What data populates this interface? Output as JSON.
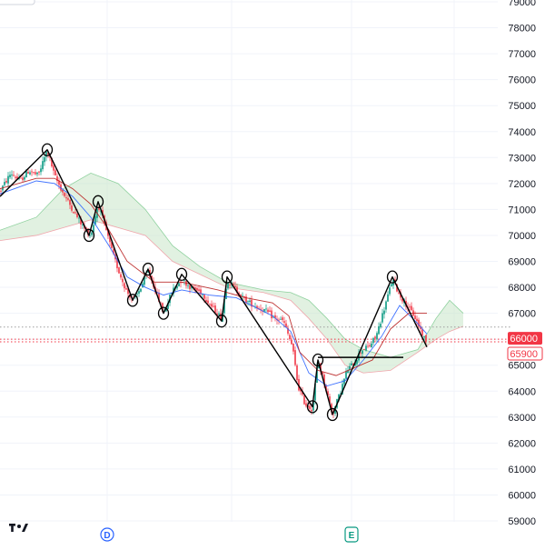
{
  "chart_data": {
    "type": "candlestick",
    "y_axis": {
      "position": "right",
      "range": [
        58700,
        79100
      ],
      "ticks": [
        59000,
        60000,
        61000,
        62000,
        63000,
        64000,
        65000,
        66000,
        67000,
        68000,
        69000,
        70000,
        71000,
        72000,
        73000,
        74000,
        75000,
        76000,
        77000,
        78000,
        79000
      ]
    },
    "x_axis": {
      "tick_labels": [],
      "event_markers": [
        {
          "label": "D",
          "x": 118,
          "color": "#2962ff"
        },
        {
          "label": "E",
          "x": 387,
          "color": "#089981"
        }
      ]
    },
    "x_range": [
      0,
      470
    ],
    "price_labels": [
      {
        "value": 66000,
        "text": "66000",
        "color": "#f23645",
        "style": "solid"
      },
      {
        "value": 65900,
        "text": "65900",
        "color": "#f23645",
        "style": "outline"
      }
    ],
    "horizontal_lines": [
      {
        "value": 66470,
        "color": "#9e9e9e",
        "style": "dotted"
      },
      {
        "value": 66000,
        "color": "#f23645",
        "style": "dotted"
      },
      {
        "value": 65900,
        "color": "#f23645",
        "style": "dotted"
      }
    ],
    "candle_colors": {
      "up": "#089981",
      "down": "#f23645"
    },
    "price_path": [
      [
        0,
        71700
      ],
      [
        12,
        72400
      ],
      [
        22,
        72100
      ],
      [
        32,
        72500
      ],
      [
        42,
        72300
      ],
      [
        52,
        73300
      ],
      [
        60,
        72300
      ],
      [
        70,
        71600
      ],
      [
        80,
        71000
      ],
      [
        92,
        70300
      ],
      [
        100,
        70000
      ],
      [
        108,
        71200
      ],
      [
        116,
        70300
      ],
      [
        124,
        69300
      ],
      [
        132,
        68500
      ],
      [
        140,
        67800
      ],
      [
        148,
        67500
      ],
      [
        155,
        68000
      ],
      [
        163,
        68600
      ],
      [
        170,
        68000
      ],
      [
        180,
        67000
      ],
      [
        190,
        67900
      ],
      [
        200,
        68300
      ],
      [
        210,
        68000
      ],
      [
        222,
        67800
      ],
      [
        232,
        67300
      ],
      [
        244,
        66800
      ],
      [
        250,
        68300
      ],
      [
        260,
        67900
      ],
      [
        270,
        67500
      ],
      [
        280,
        67300
      ],
      [
        292,
        67100
      ],
      [
        302,
        66800
      ],
      [
        312,
        66700
      ],
      [
        322,
        65700
      ],
      [
        328,
        64200
      ],
      [
        336,
        63500
      ],
      [
        344,
        63300
      ],
      [
        350,
        65200
      ],
      [
        358,
        64200
      ],
      [
        366,
        63100
      ],
      [
        374,
        63900
      ],
      [
        382,
        64800
      ],
      [
        390,
        65100
      ],
      [
        398,
        65600
      ],
      [
        406,
        65700
      ],
      [
        414,
        66100
      ],
      [
        424,
        67300
      ],
      [
        432,
        68300
      ],
      [
        440,
        67700
      ],
      [
        448,
        67300
      ],
      [
        456,
        66900
      ],
      [
        464,
        66300
      ],
      [
        470,
        65800
      ]
    ],
    "indicators": [
      {
        "name": "",
        "color": "#2962ff",
        "points": [
          [
            0,
            71600
          ],
          [
            40,
            72100
          ],
          [
            60,
            72000
          ],
          [
            80,
            71500
          ],
          [
            100,
            70700
          ],
          [
            120,
            69600
          ],
          [
            140,
            68400
          ],
          [
            160,
            68000
          ],
          [
            180,
            67700
          ],
          [
            200,
            67900
          ],
          [
            230,
            67700
          ],
          [
            260,
            67600
          ],
          [
            300,
            66900
          ],
          [
            320,
            66300
          ],
          [
            340,
            64700
          ],
          [
            360,
            64200
          ],
          [
            380,
            64400
          ],
          [
            400,
            65200
          ],
          [
            420,
            66100
          ],
          [
            440,
            67300
          ],
          [
            460,
            66600
          ],
          [
            470,
            66200
          ]
        ]
      },
      {
        "name": "",
        "color": "#b71c1c",
        "points": [
          [
            0,
            71800
          ],
          [
            40,
            72200
          ],
          [
            60,
            72200
          ],
          [
            80,
            71800
          ],
          [
            100,
            71200
          ],
          [
            120,
            70200
          ],
          [
            140,
            69000
          ],
          [
            170,
            68200
          ],
          [
            200,
            68200
          ],
          [
            240,
            67900
          ],
          [
            270,
            67600
          ],
          [
            300,
            67400
          ],
          [
            318,
            66900
          ],
          [
            330,
            65500
          ],
          [
            350,
            64800
          ],
          [
            370,
            64600
          ],
          [
            390,
            64900
          ],
          [
            410,
            65200
          ],
          [
            430,
            66400
          ],
          [
            450,
            67000
          ],
          [
            470,
            67000
          ]
        ]
      }
    ],
    "cloud": {
      "span_a": [
        [
          0,
          70200
        ],
        [
          40,
          70700
        ],
        [
          70,
          71800
        ],
        [
          100,
          72400
        ],
        [
          130,
          72000
        ],
        [
          160,
          71000
        ],
        [
          190,
          69600
        ],
        [
          220,
          68800
        ],
        [
          250,
          68200
        ],
        [
          290,
          67900
        ],
        [
          320,
          67800
        ],
        [
          340,
          67500
        ],
        [
          360,
          66800
        ],
        [
          380,
          66000
        ],
        [
          400,
          65600
        ],
        [
          430,
          65300
        ],
        [
          460,
          65600
        ],
        [
          480,
          66800
        ],
        [
          495,
          67500
        ],
        [
          510,
          67000
        ]
      ],
      "span_b": [
        [
          0,
          69800
        ],
        [
          40,
          70000
        ],
        [
          70,
          70300
        ],
        [
          100,
          70600
        ],
        [
          130,
          70300
        ],
        [
          160,
          70000
        ],
        [
          190,
          69000
        ],
        [
          220,
          68500
        ],
        [
          250,
          68000
        ],
        [
          290,
          67800
        ],
        [
          320,
          67500
        ],
        [
          340,
          66800
        ],
        [
          360,
          66000
        ],
        [
          380,
          65000
        ],
        [
          400,
          64700
        ],
        [
          430,
          64800
        ],
        [
          460,
          65500
        ],
        [
          480,
          66000
        ],
        [
          495,
          66300
        ],
        [
          510,
          66500
        ]
      ],
      "bull_color": "#c8e6c9",
      "bear_color": "#ffcdd2"
    },
    "annotations": {
      "zigzag": [
        [
          0,
          71500
        ],
        [
          52,
          73300
        ],
        [
          98,
          70000
        ],
        [
          108,
          71300
        ],
        [
          146,
          67500
        ],
        [
          163,
          68700
        ],
        [
          180,
          67000
        ],
        [
          200,
          68500
        ],
        [
          244,
          66700
        ],
        [
          250,
          68400
        ],
        [
          344,
          63400
        ],
        [
          350,
          65200
        ],
        [
          366,
          63100
        ],
        [
          432,
          68400
        ],
        [
          470,
          65700
        ]
      ],
      "swing_circles": [
        [
          52,
          73300
        ],
        [
          98,
          70000
        ],
        [
          108,
          71300
        ],
        [
          146,
          67500
        ],
        [
          163,
          68700
        ],
        [
          180,
          67000
        ],
        [
          200,
          68500
        ],
        [
          244,
          66700
        ],
        [
          250,
          68400
        ],
        [
          344,
          63400
        ],
        [
          350,
          65200
        ],
        [
          366,
          63100
        ],
        [
          432,
          68400
        ]
      ],
      "hline": {
        "x1": 350,
        "x2": 444,
        "value": 65300
      }
    }
  }
}
